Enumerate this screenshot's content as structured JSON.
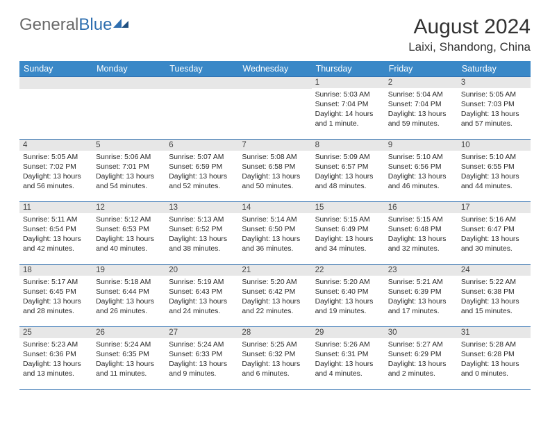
{
  "logo": {
    "textGray": "General",
    "textBlue": "Blue"
  },
  "title": "August 2024",
  "location": "Laixi, Shandong, China",
  "colors": {
    "headerBg": "#3a88c7",
    "headerText": "#ffffff",
    "dayNumBg": "#e7e7e7",
    "border": "#2f6fb0",
    "logoGray": "#6a6a6a",
    "logoBlue": "#2f6fb0",
    "bodyText": "#282828"
  },
  "dayHeaders": [
    "Sunday",
    "Monday",
    "Tuesday",
    "Wednesday",
    "Thursday",
    "Friday",
    "Saturday"
  ],
  "weeks": [
    [
      null,
      null,
      null,
      null,
      {
        "n": "1",
        "sr": "5:03 AM",
        "ss": "7:04 PM",
        "dl": "14 hours and 1 minute."
      },
      {
        "n": "2",
        "sr": "5:04 AM",
        "ss": "7:04 PM",
        "dl": "13 hours and 59 minutes."
      },
      {
        "n": "3",
        "sr": "5:05 AM",
        "ss": "7:03 PM",
        "dl": "13 hours and 57 minutes."
      }
    ],
    [
      {
        "n": "4",
        "sr": "5:05 AM",
        "ss": "7:02 PM",
        "dl": "13 hours and 56 minutes."
      },
      {
        "n": "5",
        "sr": "5:06 AM",
        "ss": "7:01 PM",
        "dl": "13 hours and 54 minutes."
      },
      {
        "n": "6",
        "sr": "5:07 AM",
        "ss": "6:59 PM",
        "dl": "13 hours and 52 minutes."
      },
      {
        "n": "7",
        "sr": "5:08 AM",
        "ss": "6:58 PM",
        "dl": "13 hours and 50 minutes."
      },
      {
        "n": "8",
        "sr": "5:09 AM",
        "ss": "6:57 PM",
        "dl": "13 hours and 48 minutes."
      },
      {
        "n": "9",
        "sr": "5:10 AM",
        "ss": "6:56 PM",
        "dl": "13 hours and 46 minutes."
      },
      {
        "n": "10",
        "sr": "5:10 AM",
        "ss": "6:55 PM",
        "dl": "13 hours and 44 minutes."
      }
    ],
    [
      {
        "n": "11",
        "sr": "5:11 AM",
        "ss": "6:54 PM",
        "dl": "13 hours and 42 minutes."
      },
      {
        "n": "12",
        "sr": "5:12 AM",
        "ss": "6:53 PM",
        "dl": "13 hours and 40 minutes."
      },
      {
        "n": "13",
        "sr": "5:13 AM",
        "ss": "6:52 PM",
        "dl": "13 hours and 38 minutes."
      },
      {
        "n": "14",
        "sr": "5:14 AM",
        "ss": "6:50 PM",
        "dl": "13 hours and 36 minutes."
      },
      {
        "n": "15",
        "sr": "5:15 AM",
        "ss": "6:49 PM",
        "dl": "13 hours and 34 minutes."
      },
      {
        "n": "16",
        "sr": "5:15 AM",
        "ss": "6:48 PM",
        "dl": "13 hours and 32 minutes."
      },
      {
        "n": "17",
        "sr": "5:16 AM",
        "ss": "6:47 PM",
        "dl": "13 hours and 30 minutes."
      }
    ],
    [
      {
        "n": "18",
        "sr": "5:17 AM",
        "ss": "6:45 PM",
        "dl": "13 hours and 28 minutes."
      },
      {
        "n": "19",
        "sr": "5:18 AM",
        "ss": "6:44 PM",
        "dl": "13 hours and 26 minutes."
      },
      {
        "n": "20",
        "sr": "5:19 AM",
        "ss": "6:43 PM",
        "dl": "13 hours and 24 minutes."
      },
      {
        "n": "21",
        "sr": "5:20 AM",
        "ss": "6:42 PM",
        "dl": "13 hours and 22 minutes."
      },
      {
        "n": "22",
        "sr": "5:20 AM",
        "ss": "6:40 PM",
        "dl": "13 hours and 19 minutes."
      },
      {
        "n": "23",
        "sr": "5:21 AM",
        "ss": "6:39 PM",
        "dl": "13 hours and 17 minutes."
      },
      {
        "n": "24",
        "sr": "5:22 AM",
        "ss": "6:38 PM",
        "dl": "13 hours and 15 minutes."
      }
    ],
    [
      {
        "n": "25",
        "sr": "5:23 AM",
        "ss": "6:36 PM",
        "dl": "13 hours and 13 minutes."
      },
      {
        "n": "26",
        "sr": "5:24 AM",
        "ss": "6:35 PM",
        "dl": "13 hours and 11 minutes."
      },
      {
        "n": "27",
        "sr": "5:24 AM",
        "ss": "6:33 PM",
        "dl": "13 hours and 9 minutes."
      },
      {
        "n": "28",
        "sr": "5:25 AM",
        "ss": "6:32 PM",
        "dl": "13 hours and 6 minutes."
      },
      {
        "n": "29",
        "sr": "5:26 AM",
        "ss": "6:31 PM",
        "dl": "13 hours and 4 minutes."
      },
      {
        "n": "30",
        "sr": "5:27 AM",
        "ss": "6:29 PM",
        "dl": "13 hours and 2 minutes."
      },
      {
        "n": "31",
        "sr": "5:28 AM",
        "ss": "6:28 PM",
        "dl": "13 hours and 0 minutes."
      }
    ]
  ],
  "labels": {
    "sunrise": "Sunrise: ",
    "sunset": "Sunset: ",
    "daylight": "Daylight: "
  }
}
